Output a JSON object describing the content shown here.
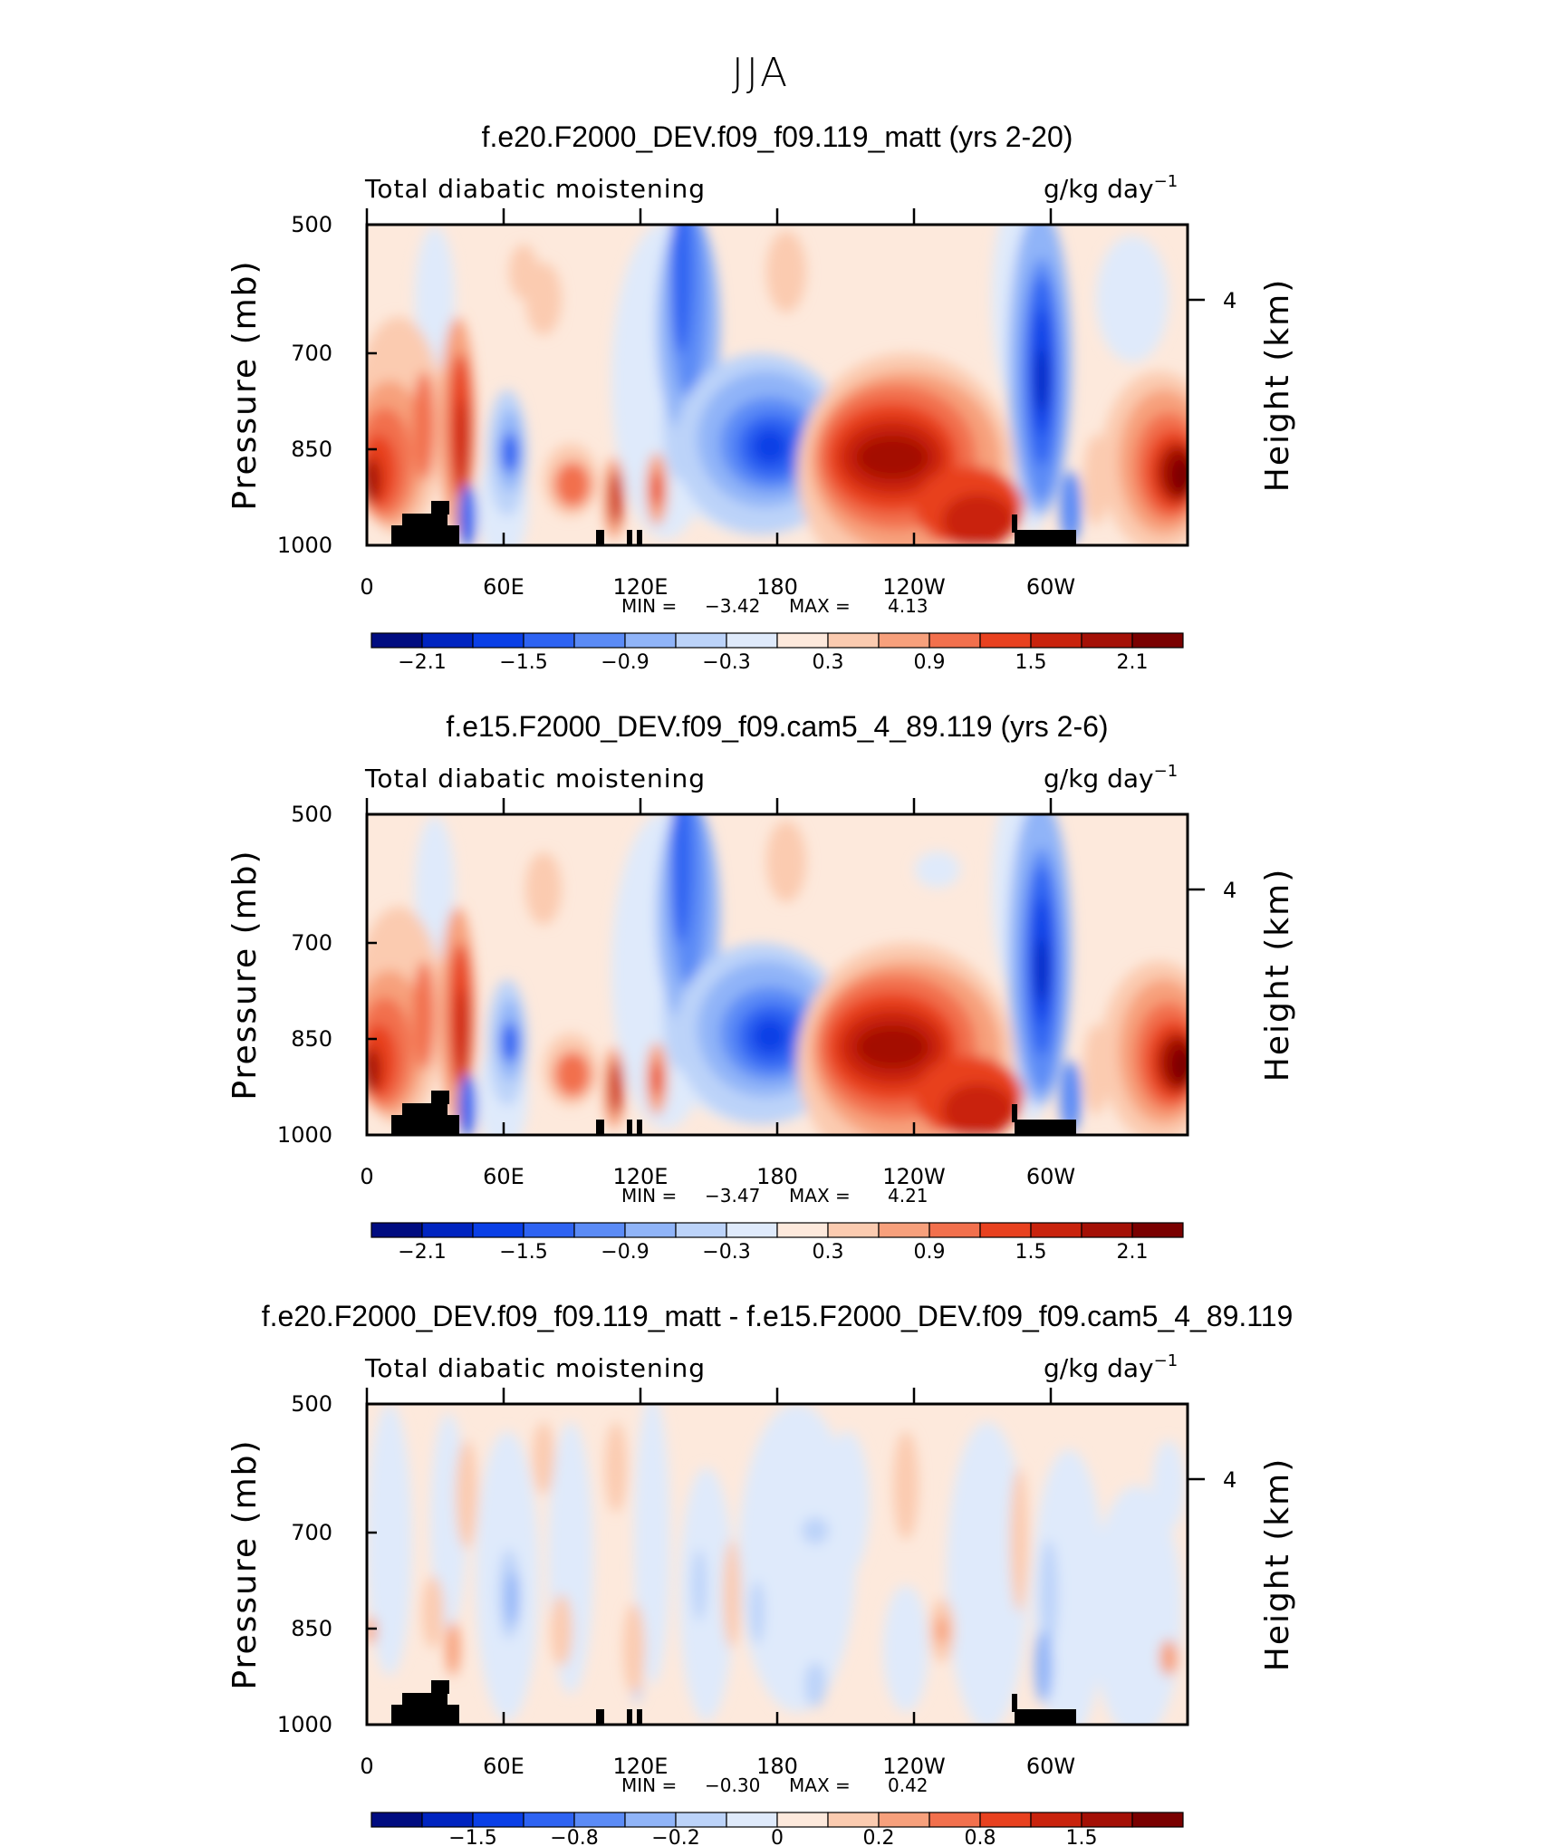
{
  "figure_title": "JJA",
  "chart_data": [
    {
      "type": "heatmap",
      "title": "f.e20.F2000_DEV.f09_f09.119_matt (yrs 2-20)",
      "left_label": "Total diabatic moistening",
      "units": "g/kg day",
      "units_exp": "−1",
      "ylabel": "Pressure (mb)",
      "ylabel_right": "Height (km)",
      "y_ticks": [
        "500",
        "700",
        "850",
        "1000"
      ],
      "y_right_tick": "4",
      "x_ticks": [
        "0",
        "60E",
        "120E",
        "180",
        "120W",
        "60W"
      ],
      "min_label": "MIN =",
      "min_value": "−3.42",
      "max_label": "MAX =",
      "max_value": "4.13",
      "colorbar_labels": [
        "−2.1",
        "−1.5",
        "−0.9",
        "−0.3",
        "0.3",
        "0.9",
        "1.5",
        "2.1"
      ]
    },
    {
      "type": "heatmap",
      "title": "f.e15.F2000_DEV.f09_f09.cam5_4_89.119 (yrs 2-6)",
      "left_label": "Total diabatic moistening",
      "units": "g/kg day",
      "units_exp": "−1",
      "ylabel": "Pressure (mb)",
      "ylabel_right": "Height (km)",
      "y_ticks": [
        "500",
        "700",
        "850",
        "1000"
      ],
      "y_right_tick": "4",
      "x_ticks": [
        "0",
        "60E",
        "120E",
        "180",
        "120W",
        "60W"
      ],
      "min_label": "MIN =",
      "min_value": "−3.47",
      "max_label": "MAX =",
      "max_value": "4.21",
      "colorbar_labels": [
        "−2.1",
        "−1.5",
        "−0.9",
        "−0.3",
        "0.3",
        "0.9",
        "1.5",
        "2.1"
      ]
    },
    {
      "type": "heatmap",
      "title": "f.e20.F2000_DEV.f09_f09.119_matt - f.e15.F2000_DEV.f09_f09.cam5_4_89.119",
      "left_label": "Total diabatic moistening",
      "units": "g/kg day",
      "units_exp": "−1",
      "ylabel": "Pressure (mb)",
      "ylabel_right": "Height (km)",
      "y_ticks": [
        "500",
        "700",
        "850",
        "1000"
      ],
      "y_right_tick": "4",
      "x_ticks": [
        "0",
        "60E",
        "120E",
        "180",
        "120W",
        "60W"
      ],
      "min_label": "MIN =",
      "min_value": "−0.30",
      "max_label": "MAX =",
      "max_value": "0.42",
      "colorbar_labels": [
        "−1.5",
        "−0.8",
        "−0.2",
        "0",
        "0.2",
        "0.8",
        "1.5"
      ]
    }
  ],
  "colors": {
    "colorbar": [
      "#000c80",
      "#0024c0",
      "#0a3fe6",
      "#2e63f2",
      "#5b8bf6",
      "#90b4f8",
      "#bcd3f9",
      "#dfeafb",
      "#fde9dc",
      "#fbcbb0",
      "#f7a07c",
      "#f2704d",
      "#e8411f",
      "#c9230d",
      "#a41006",
      "#7a0000"
    ],
    "terrain": "#000000"
  }
}
